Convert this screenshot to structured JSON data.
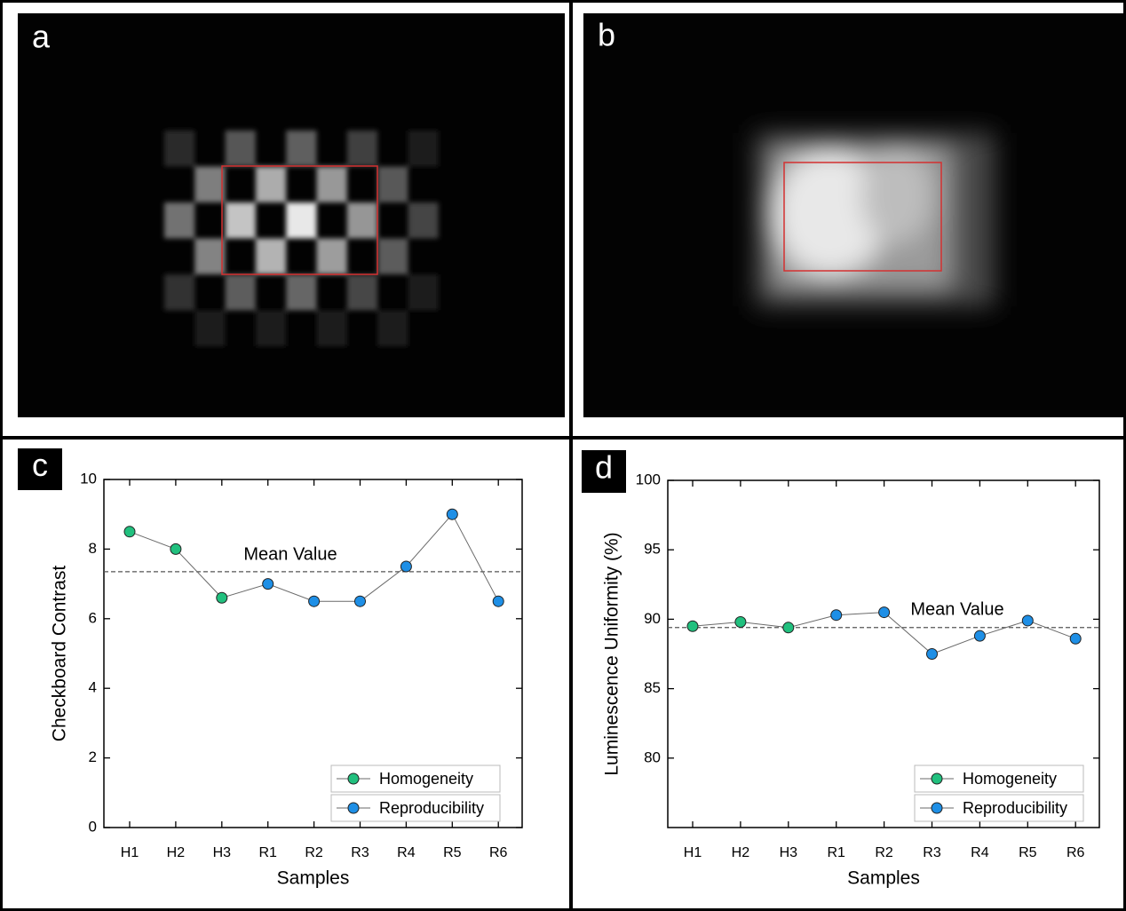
{
  "images": [
    {
      "label": "a"
    },
    {
      "label": "b"
    }
  ],
  "chart_data": [
    {
      "type": "line",
      "label": "c",
      "categories": [
        "H1",
        "H2",
        "H3",
        "R1",
        "R2",
        "R3",
        "R4",
        "R5",
        "R6"
      ],
      "series": [
        {
          "name": "Homogeneity",
          "color": "#21c07e",
          "values": [
            8.5,
            8.0,
            6.6,
            null,
            null,
            null,
            null,
            null,
            null
          ]
        },
        {
          "name": "Reproducibility",
          "color": "#1e8fe6",
          "values": [
            null,
            null,
            null,
            7.0,
            6.5,
            6.5,
            7.5,
            9.0,
            6.5
          ]
        }
      ],
      "ylim": [
        0,
        10
      ],
      "yticks": [
        0,
        2,
        4,
        6,
        8,
        10
      ],
      "xlabel": "Samples",
      "ylabel": "Checkboard Contrast",
      "mean": 7.35,
      "mean_label": "Mean Value",
      "line_color": "#6a6a6a",
      "legend": "lower right"
    },
    {
      "type": "line",
      "label": "d",
      "categories": [
        "H1",
        "H2",
        "H3",
        "R1",
        "R2",
        "R3",
        "R4",
        "R5",
        "R6"
      ],
      "series": [
        {
          "name": "Homogeneity",
          "color": "#21c07e",
          "values": [
            89.5,
            89.8,
            89.4,
            null,
            null,
            null,
            null,
            null,
            null
          ]
        },
        {
          "name": "Reproducibility",
          "color": "#1e8fe6",
          "values": [
            null,
            null,
            null,
            90.3,
            90.5,
            87.5,
            88.8,
            89.9,
            88.6
          ]
        }
      ],
      "ylim": [
        75,
        100
      ],
      "yticks": [
        80,
        85,
        90,
        95,
        100
      ],
      "xlabel": "Samples",
      "ylabel": "Luminescence Uniformity (%)",
      "mean": 89.4,
      "mean_label": "Mean Value",
      "line_color": "#6a6a6a",
      "legend": "lower right"
    }
  ]
}
